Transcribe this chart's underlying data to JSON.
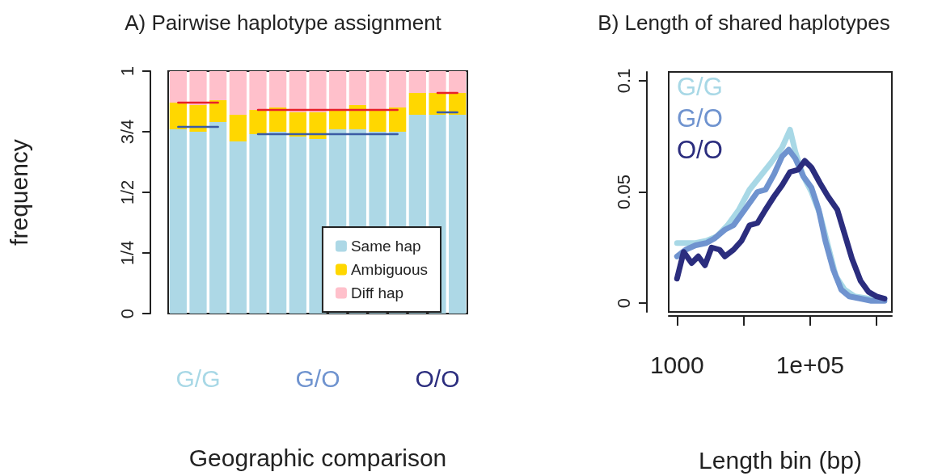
{
  "chart_data": [
    {
      "type": "bar",
      "title": "A) Pairwise haplotype assignment",
      "xlabel": "Geographic comparison",
      "ylabel": "frequency",
      "stacked": true,
      "legend": "bottom right",
      "grid": false,
      "categories": [
        null,
        "G/G",
        null,
        null,
        null,
        null,
        null,
        "G/O",
        null,
        null,
        null,
        null,
        null,
        "O/O",
        null
      ],
      "ylim": [
        0,
        1
      ],
      "yticks": [
        0,
        {
          "value": 0.25,
          "label": "1/4"
        },
        {
          "value": 0.5,
          "label": "1/2"
        },
        {
          "value": 0.75,
          "label": "3/4"
        },
        1
      ],
      "series": [
        {
          "name": "Same hap",
          "color": "#add8e6",
          "values": [
            0.76,
            0.75,
            0.79,
            0.71,
            0.74,
            0.75,
            0.73,
            0.72,
            0.76,
            0.76,
            0.75,
            0.75,
            0.82,
            0.82,
            0.82
          ]
        },
        {
          "name": "Ambiguous",
          "color": "#ffd700",
          "values": [
            0.11,
            0.11,
            0.09,
            0.11,
            0.1,
            0.1,
            0.1,
            0.11,
            0.08,
            0.1,
            0.09,
            0.1,
            0.09,
            0.09,
            0.09
          ]
        },
        {
          "name": "Diff hap",
          "color": "#ffc0cb",
          "values": [
            0.13,
            0.14,
            0.12,
            0.18,
            0.16,
            0.15,
            0.17,
            0.17,
            0.16,
            0.14,
            0.16,
            0.15,
            0.09,
            0.09,
            0.09
          ]
        },
        {
          "type": "line",
          "color": "#e8202a",
          "values": [
            0.87,
            0.87,
            0.87,
            null,
            0.84,
            0.84,
            0.84,
            0.84,
            0.84,
            0.84,
            0.84,
            0.84,
            null,
            0.91,
            0.91
          ]
        },
        {
          "type": "line",
          "color": "#3b5ba5",
          "values": [
            0.77,
            0.77,
            0.77,
            null,
            0.74,
            0.74,
            0.74,
            0.74,
            0.74,
            0.74,
            0.74,
            0.74,
            null,
            0.83,
            0.83
          ]
        }
      ]
    },
    {
      "type": "line",
      "title": "B) Length of shared haplotypes",
      "xlabel": "Length bin (bp)",
      "log": "x",
      "legend": "top left",
      "grid": false,
      "marker": "none",
      "xlim": [
        750,
        1700000
      ],
      "xticks": [
        1000,
        {
          "value": 10000,
          "label": null
        },
        {
          "value": 100000,
          "label": "1e+05"
        },
        {
          "value": 1000000,
          "label": null
        }
      ],
      "ylim": [
        -0.004,
        0.104
      ],
      "yticks": [
        0,
        0.05,
        0.1
      ],
      "series": [
        {
          "name": "G/G",
          "color": "#a8d8e6",
          "x": [
            1000,
            1318,
            1905,
            2754,
            3981,
            5754,
            8511,
            12300,
            17800,
            25700,
            38000,
            50100,
            60300,
            79400,
            105000,
            141000,
            186000,
            245000,
            331000,
            468000,
            759000,
            1318000
          ],
          "values": [
            0.027,
            0.027,
            0.027,
            0.028,
            0.03,
            0.035,
            0.042,
            0.051,
            0.057,
            0.063,
            0.07,
            0.078,
            0.068,
            0.057,
            0.05,
            0.04,
            0.026,
            0.012,
            0.006,
            0.003,
            0.002,
            0.002
          ]
        },
        {
          "name": "G/O",
          "color": "#6f93cf",
          "x": [
            1000,
            1349,
            1905,
            2754,
            3631,
            5248,
            7079,
            9333,
            12300,
            16200,
            21400,
            28800,
            38000,
            47900,
            60300,
            79400,
            105000,
            135000,
            170000,
            224000,
            295000,
            389000,
            575000,
            832000,
            1318000
          ],
          "values": [
            0.021,
            0.024,
            0.026,
            0.027,
            0.029,
            0.033,
            0.035,
            0.04,
            0.045,
            0.05,
            0.051,
            0.058,
            0.066,
            0.069,
            0.065,
            0.057,
            0.052,
            0.042,
            0.028,
            0.015,
            0.006,
            0.003,
            0.002,
            0.001,
            0.001
          ]
        },
        {
          "name": "O/O",
          "color": "#2b2d7e",
          "x": [
            1000,
            1259,
            1660,
            2089,
            2630,
            3311,
            4365,
            5248,
            7079,
            9333,
            12300,
            16200,
            21400,
            28800,
            38000,
            50100,
            66100,
            83200,
            105000,
            141000,
            186000,
            257000,
            324000,
            427000,
            575000,
            759000,
            1000000,
            1318000
          ],
          "values": [
            0.011,
            0.023,
            0.018,
            0.021,
            0.017,
            0.025,
            0.024,
            0.021,
            0.024,
            0.028,
            0.035,
            0.036,
            0.042,
            0.048,
            0.053,
            0.059,
            0.06,
            0.064,
            0.061,
            0.054,
            0.048,
            0.042,
            0.032,
            0.02,
            0.01,
            0.005,
            0.003,
            0.002
          ]
        }
      ]
    }
  ]
}
